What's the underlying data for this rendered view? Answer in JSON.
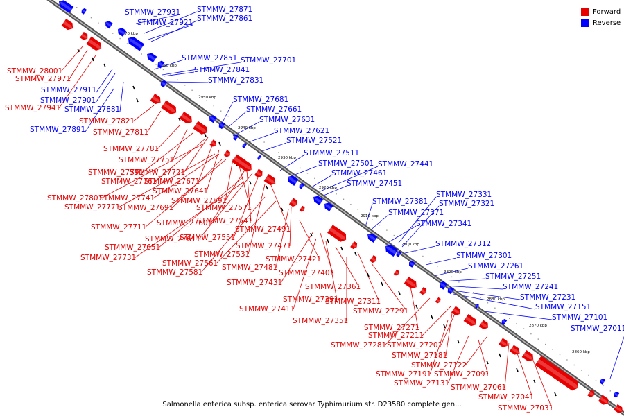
{
  "legend": {
    "forward_label": "Forward",
    "reverse_label": "Reverse",
    "forward_color": "#e60000",
    "reverse_color": "#0000ff"
  },
  "caption": "Salmonella enterica subsp. enterica serovar Typhimurium str. D23580 complete gen...",
  "scale_ticks": [
    "2970 kbp",
    "2960 kbp",
    "2950 kbp",
    "2940 kbp",
    "2930 kbp",
    "2920 kbp",
    "2910 kbp",
    "2900 kbp",
    "2890 kbp",
    "2880 kbp",
    "2870 kbp",
    "2860 kbp"
  ],
  "reverse_genes": [
    "STMMW_27931",
    "STMMW_27871",
    "STMMW_27921",
    "STMMW_27861",
    "STMMW_27851",
    "STMMW_27701",
    "STMMW_27841",
    "STMMW_27831",
    "STMMW_27911",
    "STMMW_27901",
    "STMMW_27881",
    "STMMW_27891",
    "STMMW_27681",
    "STMMW_27661",
    "STMMW_27631",
    "STMMW_27621",
    "STMMW_27521",
    "STMMW_27511",
    "STMMW_27501",
    "STMMW_27441",
    "STMMW_27461",
    "STMMW_27451",
    "STMMW_27331",
    "STMMW_27321",
    "STMMW_27381",
    "STMMW_27371",
    "STMMW_27341",
    "STMMW_27312",
    "STMMW_27301",
    "STMMW_27261",
    "STMMW_27251",
    "STMMW_27241",
    "STMMW_27231",
    "STMMW_27151",
    "STMMW_27101",
    "STMMW_27011"
  ],
  "forward_genes": [
    "STMMW_28001",
    "STMMW_27971",
    "STMMW_27941",
    "STMMW_27821",
    "STMMW_27811",
    "STMMW_27781",
    "STMMW_27751",
    "STMMW_27791",
    "STMMW_27721",
    "STMMW_27761",
    "STMMW_27671",
    "STMMW_27641",
    "STMMW_27801",
    "STMMW_27741",
    "STMMW_27771",
    "STMMW_27691",
    "STMMW_27591",
    "STMMW_27571",
    "STMMW_27711",
    "STMMW_27601",
    "STMMW_27541",
    "STMMW_27491",
    "STMMW_27611",
    "STMMW_27551",
    "STMMW_27651",
    "STMMW_27531",
    "STMMW_27471",
    "STMMW_27731",
    "STMMW_27561",
    "STMMW_27481",
    "STMMW_27581",
    "STMMW_27421",
    "STMMW_27401",
    "STMMW_27431",
    "STMMW_27361",
    "STMMW_27391",
    "STMMW_27311",
    "STMMW_27411",
    "STMMW_27291",
    "STMMW_27351",
    "STMMW_27271",
    "STMMW_27211",
    "STMMW_27281",
    "STMMW_27201",
    "STMMW_27181",
    "STMMW_27122",
    "STMMW_27191",
    "STMMW_27091",
    "STMMW_27131",
    "STMMW_27061",
    "STMMW_27041",
    "STMMW_27031"
  ]
}
